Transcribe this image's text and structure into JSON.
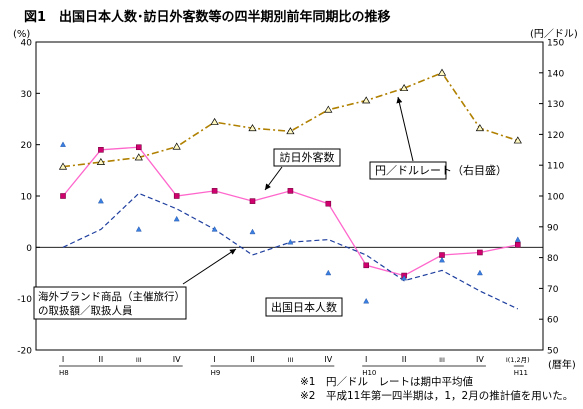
{
  "chart_data": {
    "type": "line",
    "title": "図1　出国日本人数･訪日外客数等の四半期別前年同期比の推移",
    "y_left_unit": "(%)",
    "y_right_unit": "(円／ドル)",
    "x_unit": "(暦年)",
    "ylim_left": [
      -20,
      40
    ],
    "ylim_right": [
      50,
      150
    ],
    "yticks_left": [
      "40",
      "30",
      "20",
      "10",
      "0",
      "-10",
      "-20"
    ],
    "yticks_right": [
      "150",
      "140",
      "130",
      "120",
      "110",
      "100",
      "90",
      "80",
      "70",
      "60",
      "50"
    ],
    "quarters": [
      "I",
      "II",
      "III",
      "IV",
      "I",
      "II",
      "III",
      "IV",
      "I",
      "II",
      "III",
      "IV",
      "I(1,2月)"
    ],
    "years": [
      {
        "label": "H8",
        "start": 0,
        "end": 3
      },
      {
        "label": "H9",
        "start": 4,
        "end": 7
      },
      {
        "label": "H10",
        "start": 8,
        "end": 11
      },
      {
        "label": "H11",
        "start": 12,
        "end": 12
      }
    ],
    "series": [
      {
        "name": "訪日外客数",
        "axis": "left",
        "color": "#ff66cc",
        "values": [
          10,
          19,
          19.5,
          10,
          11,
          9,
          11,
          8.5,
          -3.5,
          -5.5,
          -1.5,
          -1,
          0.5
        ]
      },
      {
        "name": "円／ドルレート",
        "axis": "right",
        "color": "#b08000",
        "values": [
          109.5,
          111,
          112.5,
          116,
          124,
          122,
          121,
          128,
          131,
          135,
          140,
          122,
          118
        ]
      },
      {
        "name": "出国日本人数",
        "axis": "left",
        "color": "#1f3f9f",
        "values": [
          0,
          3.5,
          10.5,
          7.5,
          3.5,
          -1.5,
          1,
          1.5,
          -1.5,
          -6.5,
          -4.5,
          -8.5,
          -12
        ]
      },
      {
        "name": "海外ブランド商品（主催旅行）の取扱額／取扱人員",
        "axis": "left",
        "color": "#2f6fd0",
        "values": [
          20,
          9,
          3.5,
          5.5,
          3.5,
          3,
          1,
          -5,
          -10.5,
          -6,
          -2.5,
          -5,
          1.5
        ]
      }
    ],
    "annotations": {
      "visitors": "訪日外客数",
      "yen": "円／ドルレート（右目盛）",
      "brand_line1": "海外ブランド商品（主催旅行）",
      "brand_line2": "の取扱額／取扱人員",
      "outbound": "出国日本人数"
    },
    "footnotes": [
      "※1　円／ドル　レートは期中平均値",
      "※2　平成11年第一四半期は，1，2月の推計値を用いた。"
    ],
    "grid": false
  }
}
